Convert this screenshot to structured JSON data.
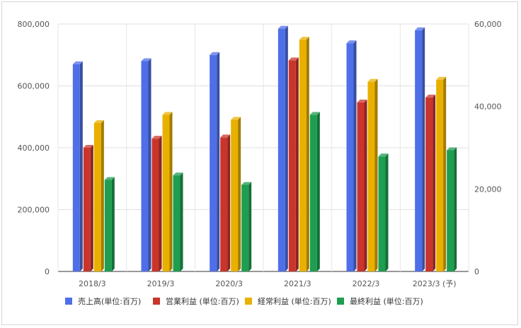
{
  "chart_data": {
    "type": "bar",
    "style": "3d-clustered-column",
    "categories": [
      "2018/3",
      "2019/3",
      "2020/3",
      "2021/3",
      "2022/3",
      "2023/3 (予)"
    ],
    "series": [
      {
        "name": "売上高(単位:百万)",
        "axis": "left",
        "color": "#4f6fe8",
        "values": [
          670000,
          680000,
          700000,
          785000,
          738000,
          780000
        ]
      },
      {
        "name": "営業利益 (単位:百万)",
        "axis": "right",
        "color": "#c9352c",
        "values": [
          30000,
          32200,
          32500,
          51200,
          41000,
          42200
        ]
      },
      {
        "name": "経常利益 (単位:百万)",
        "axis": "right",
        "color": "#e9b000",
        "values": [
          36000,
          38000,
          36800,
          56200,
          46000,
          46500
        ]
      },
      {
        "name": "最終利益 (単位:百万)",
        "axis": "right",
        "color": "#1e9e50",
        "values": [
          22200,
          23300,
          21000,
          38000,
          27900,
          29400
        ]
      }
    ],
    "y_left": {
      "min": 0,
      "max": 800000,
      "ticks": [
        "0",
        "200,000",
        "400,000",
        "600,000",
        "800,000"
      ]
    },
    "y_right": {
      "min": 0,
      "max": 60000,
      "ticks": [
        "0",
        "20,000",
        "40,000",
        "60,000"
      ]
    },
    "grid": true,
    "legend": "bottom"
  }
}
